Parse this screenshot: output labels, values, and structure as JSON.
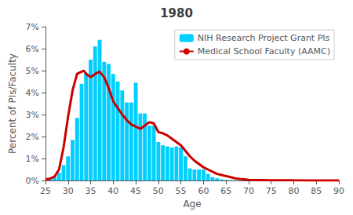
{
  "chart_data": {
    "type": "bar",
    "title": "1980",
    "xlabel": "Age",
    "ylabel": "Percent of PIs/Faculty",
    "series": [
      {
        "name": "NIH Research Project Grant PIs",
        "type": "bar",
        "color": "#00CFFF",
        "x": [
          26,
          27,
          28,
          29,
          30,
          31,
          32,
          33,
          34,
          35,
          36,
          37,
          38,
          39,
          40,
          41,
          42,
          43,
          44,
          45,
          46,
          47,
          48,
          49,
          50,
          51,
          52,
          53,
          54,
          55,
          56,
          57,
          58,
          59,
          60,
          61,
          62,
          63,
          64,
          65,
          66,
          67,
          68,
          69,
          70
        ],
        "values": [
          0.08,
          0.18,
          0.35,
          0.7,
          1.1,
          1.85,
          2.85,
          4.4,
          4.9,
          5.5,
          6.1,
          6.4,
          5.4,
          5.3,
          4.85,
          4.5,
          4.1,
          3.55,
          3.55,
          4.45,
          3.05,
          3.05,
          2.5,
          2.5,
          1.75,
          1.6,
          1.55,
          1.5,
          1.55,
          1.5,
          1.1,
          0.55,
          0.5,
          0.5,
          0.5,
          0.3,
          0.15,
          0.1,
          0.05,
          0.03,
          0.02,
          0.01,
          0.01,
          0.005,
          0.002
        ]
      },
      {
        "name": "Medical School Faculty (AAMC)",
        "type": "line",
        "color": "#CC0000",
        "x": [
          25,
          26,
          27,
          28,
          29,
          30,
          31,
          32,
          33,
          33.5,
          34,
          35,
          36,
          37,
          38,
          39,
          40,
          41,
          42,
          43,
          44,
          45,
          46,
          47,
          48,
          49,
          50,
          51,
          52,
          53,
          54,
          55,
          56,
          57,
          58,
          59,
          60,
          61,
          62,
          63,
          64,
          65,
          66,
          67,
          68,
          69,
          70,
          75,
          80,
          85,
          90
        ],
        "values": [
          0.05,
          0.08,
          0.18,
          0.5,
          1.5,
          2.9,
          4.1,
          4.85,
          4.95,
          5.0,
          4.85,
          4.7,
          4.85,
          4.95,
          4.7,
          4.2,
          3.6,
          3.3,
          3.0,
          2.75,
          2.55,
          2.45,
          2.35,
          2.5,
          2.65,
          2.6,
          2.2,
          2.15,
          2.05,
          1.9,
          1.75,
          1.6,
          1.35,
          1.1,
          0.9,
          0.75,
          0.6,
          0.5,
          0.4,
          0.3,
          0.25,
          0.2,
          0.15,
          0.1,
          0.07,
          0.05,
          0.03,
          0.01,
          0.005,
          0.002,
          0.001
        ]
      }
    ],
    "xlim": [
      25,
      90
    ],
    "xticks": [
      25,
      30,
      35,
      40,
      45,
      50,
      55,
      60,
      65,
      70,
      75,
      80,
      85,
      90
    ],
    "ylim": [
      0,
      7
    ],
    "yticks": [
      {
        "value": 0,
        "label": "0%"
      },
      {
        "value": 1,
        "label": "1%"
      },
      {
        "value": 2,
        "label": "2%"
      },
      {
        "value": 3,
        "label": "3%"
      },
      {
        "value": 4,
        "label": "4%"
      },
      {
        "value": 5,
        "label": "5%"
      },
      {
        "value": 6,
        "label": "6%"
      },
      {
        "value": 7,
        "label": "7%"
      }
    ],
    "grid": false,
    "legend": "upper right"
  }
}
